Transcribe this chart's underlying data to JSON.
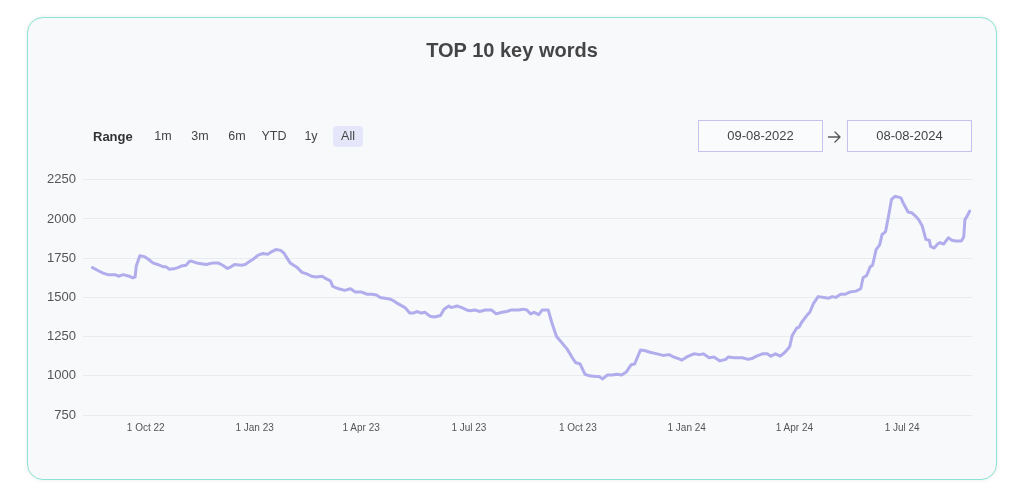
{
  "chart_data": {
    "type": "line",
    "title": "TOP 10 key words",
    "annotations": [
      "Range",
      "1m",
      "3m",
      "6m",
      "YTD",
      "1y",
      "All",
      "09-08-2022",
      "08-08-2024"
    ],
    "color": "#b1adec",
    "grid": "y",
    "xlim": [
      "2022-08-09",
      "2024-08-29"
    ],
    "xticks": [
      {
        "value": "2022-10-01",
        "label": "1 Oct 22"
      },
      {
        "value": "2023-01-01",
        "label": "1 Jan 23"
      },
      {
        "value": "2023-04-01",
        "label": "1 Apr 23"
      },
      {
        "value": "2023-07-01",
        "label": "1 Jul 23"
      },
      {
        "value": "2023-10-01",
        "label": "1 Oct 23"
      },
      {
        "value": "2024-01-01",
        "label": "1 Jan 24"
      },
      {
        "value": "2024-04-01",
        "label": "1 Apr 24"
      },
      {
        "value": "2024-07-01",
        "label": "1 Jul 24"
      }
    ],
    "ylim": [
      750,
      2250
    ],
    "yticks": [
      750,
      1000,
      1250,
      1500,
      1750,
      2000,
      2250
    ],
    "x": [
      "2022-08-17",
      "2022-08-22",
      "2022-08-26",
      "2022-08-30",
      "2022-09-05",
      "2022-09-08",
      "2022-09-12",
      "2022-09-17",
      "2022-09-20",
      "2022-09-22",
      "2022-09-23",
      "2022-09-26",
      "2022-09-30",
      "2022-10-03",
      "2022-10-07",
      "2022-10-11",
      "2022-10-16",
      "2022-10-18",
      "2022-10-21",
      "2022-10-26",
      "2022-10-28",
      "2022-10-31",
      "2022-11-04",
      "2022-11-07",
      "2022-11-09",
      "2022-11-13",
      "2022-11-17",
      "2022-11-21",
      "2022-11-27",
      "2022-12-01",
      "2022-12-05",
      "2022-12-09",
      "2022-12-12",
      "2022-12-15",
      "2022-12-21",
      "2022-12-24",
      "2022-12-27",
      "2022-12-31",
      "2023-01-04",
      "2023-01-08",
      "2023-01-12",
      "2023-01-15",
      "2023-01-19",
      "2023-01-23",
      "2023-01-26",
      "2023-01-28",
      "2023-01-31",
      "2023-02-03",
      "2023-02-06",
      "2023-02-10",
      "2023-02-14",
      "2023-02-18",
      "2023-02-22",
      "2023-02-27",
      "2023-03-01",
      "2023-03-06",
      "2023-03-08",
      "2023-03-13",
      "2023-03-18",
      "2023-03-23",
      "2023-03-27",
      "2023-04-01",
      "2023-04-06",
      "2023-04-10",
      "2023-04-14",
      "2023-04-17",
      "2023-04-21",
      "2023-04-25",
      "2023-04-28",
      "2023-05-02",
      "2023-05-08",
      "2023-05-12",
      "2023-05-15",
      "2023-05-18",
      "2023-05-22",
      "2023-05-25",
      "2023-05-29",
      "2023-06-02",
      "2023-06-07",
      "2023-06-10",
      "2023-06-14",
      "2023-06-16",
      "2023-06-21",
      "2023-06-25",
      "2023-06-29",
      "2023-07-02",
      "2023-07-06",
      "2023-07-10",
      "2023-07-15",
      "2023-07-20",
      "2023-07-24",
      "2023-07-29",
      "2023-08-02",
      "2023-08-06",
      "2023-08-12",
      "2023-08-16",
      "2023-08-19",
      "2023-08-22",
      "2023-08-25",
      "2023-08-29",
      "2023-09-01",
      "2023-09-06",
      "2023-09-09",
      "2023-09-13",
      "2023-09-17",
      "2023-09-22",
      "2023-09-26",
      "2023-09-29",
      "2023-10-03",
      "2023-10-07",
      "2023-10-11",
      "2023-10-16",
      "2023-10-19",
      "2023-10-22",
      "2023-10-26",
      "2023-10-30",
      "2023-11-03",
      "2023-11-07",
      "2023-11-11",
      "2023-11-15",
      "2023-11-18",
      "2023-11-23",
      "2023-11-27",
      "2023-12-01",
      "2023-12-07",
      "2023-12-12",
      "2023-12-17",
      "2023-12-21",
      "2023-12-25",
      "2023-12-28",
      "2024-01-01",
      "2024-01-07",
      "2024-01-12",
      "2024-01-15",
      "2024-01-20",
      "2024-01-24",
      "2024-01-29",
      "2024-02-03",
      "2024-02-05",
      "2024-02-10",
      "2024-02-17",
      "2024-02-22",
      "2024-02-25",
      "2024-02-29",
      "2024-03-05",
      "2024-03-09",
      "2024-03-12",
      "2024-03-16",
      "2024-03-20",
      "2024-03-24",
      "2024-03-28",
      "2024-03-30",
      "2024-04-03",
      "2024-04-05",
      "2024-04-07",
      "2024-04-12",
      "2024-04-14",
      "2024-04-17",
      "2024-04-21",
      "2024-04-26",
      "2024-04-30",
      "2024-05-03",
      "2024-05-06",
      "2024-05-10",
      "2024-05-14",
      "2024-05-18",
      "2024-05-23",
      "2024-05-27",
      "2024-05-29",
      "2024-06-01",
      "2024-06-04",
      "2024-06-06",
      "2024-06-09",
      "2024-06-12",
      "2024-06-14",
      "2024-06-17",
      "2024-06-20",
      "2024-06-22",
      "2024-06-25",
      "2024-06-30",
      "2024-07-02",
      "2024-07-06",
      "2024-07-09",
      "2024-07-12",
      "2024-07-15",
      "2024-07-18",
      "2024-07-21",
      "2024-07-24",
      "2024-07-25",
      "2024-07-28",
      "2024-07-31",
      "2024-08-02",
      "2024-08-05",
      "2024-08-09",
      "2024-08-12",
      "2024-08-15",
      "2024-08-20",
      "2024-08-22",
      "2024-08-23",
      "2024-08-25",
      "2024-08-27"
    ],
    "values": [
      1690,
      1670,
      1655,
      1645,
      1645,
      1635,
      1645,
      1635,
      1625,
      1630,
      1700,
      1765,
      1760,
      1745,
      1720,
      1710,
      1695,
      1695,
      1680,
      1685,
      1690,
      1700,
      1705,
      1730,
      1730,
      1720,
      1715,
      1710,
      1720,
      1720,
      1705,
      1685,
      1695,
      1710,
      1705,
      1710,
      1725,
      1745,
      1770,
      1780,
      1775,
      1790,
      1805,
      1800,
      1780,
      1755,
      1720,
      1705,
      1690,
      1660,
      1650,
      1635,
      1630,
      1635,
      1625,
      1605,
      1570,
      1555,
      1545,
      1555,
      1535,
      1535,
      1520,
      1520,
      1515,
      1500,
      1495,
      1490,
      1480,
      1460,
      1435,
      1400,
      1400,
      1410,
      1400,
      1405,
      1380,
      1375,
      1385,
      1425,
      1445,
      1435,
      1445,
      1435,
      1420,
      1415,
      1420,
      1410,
      1420,
      1420,
      1395,
      1405,
      1410,
      1420,
      1420,
      1425,
      1420,
      1395,
      1405,
      1390,
      1420,
      1420,
      1340,
      1250,
      1215,
      1170,
      1120,
      1085,
      1075,
      1010,
      1000,
      995,
      995,
      980,
      1005,
      1005,
      1010,
      1005,
      1025,
      1070,
      1075,
      1165,
      1160,
      1150,
      1140,
      1130,
      1135,
      1120,
      1110,
      1100,
      1120,
      1140,
      1135,
      1140,
      1115,
      1120,
      1095,
      1105,
      1120,
      1115,
      1115,
      1105,
      1110,
      1125,
      1140,
      1140,
      1125,
      1140,
      1125,
      1150,
      1185,
      1255,
      1305,
      1310,
      1340,
      1390,
      1405,
      1460,
      1505,
      1500,
      1495,
      1505,
      1500,
      1520,
      1520,
      1535,
      1540,
      1555,
      1625,
      1640,
      1695,
      1705,
      1805,
      1835,
      1900,
      1920,
      2040,
      2125,
      2145,
      2135,
      2100,
      2045,
      2040,
      2020,
      1995,
      1955,
      1870,
      1865,
      1825,
      1815,
      1840,
      1850,
      1840,
      1880,
      1865,
      1860,
      1860,
      1885,
      1995,
      2020,
      2050
    ]
  }
}
